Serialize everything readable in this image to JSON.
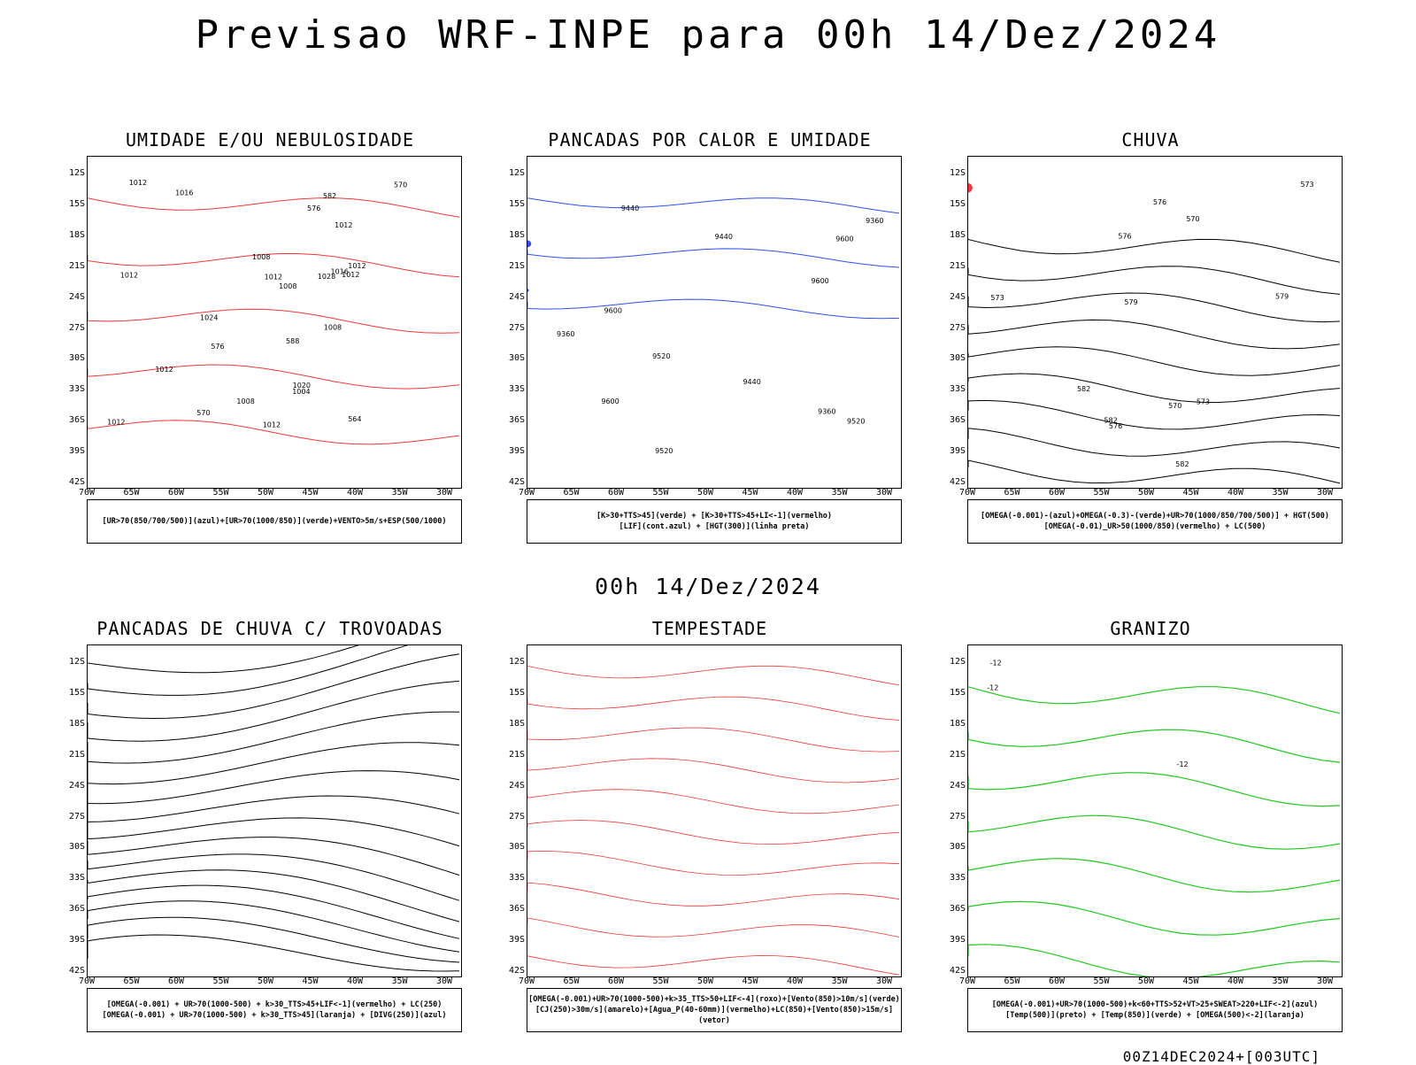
{
  "title": "Previsao WRF-INPE  para 00h 14/Dez/2024",
  "mid_title": "00h 14/Dez/2024",
  "footer": "00Z14DEC2024+[003UTC]",
  "lat_labels": [
    "12S",
    "15S",
    "18S",
    "21S",
    "24S",
    "27S",
    "30S",
    "33S",
    "36S",
    "39S",
    "42S"
  ],
  "lon_labels": [
    "70W",
    "65W",
    "60W",
    "55W",
    "50W",
    "45W",
    "40W",
    "35W",
    "30W"
  ],
  "colors": {
    "blue": "#3050f0",
    "lightblue": "#a0a8f0",
    "green": "#20c820",
    "red": "#f03838",
    "darkteal": "#1e4e4a",
    "orange": "#f07a20",
    "yellow": "#e0d020",
    "black": "#000000"
  },
  "panels": [
    {
      "title": "UMIDADE E/OU NEBULOSIDADE",
      "legend1": "[UR>70(850/700/500)](azul)+[UR>70(1000/850)](verde)+VENTO>5m/s+ESP(500/1000)",
      "legend2": "",
      "labels": [
        "1008",
        "1012",
        "1012",
        "1016",
        "1012",
        "1012",
        "1008",
        "1012",
        "1008",
        "1012",
        "1004",
        "1008",
        "1012",
        "1016",
        "1020",
        "1024",
        "1028",
        "1012",
        "1012",
        "570",
        "570",
        "582",
        "564",
        "576",
        "588",
        "576"
      ]
    },
    {
      "title": "PANCADAS POR CALOR E UMIDADE",
      "legend1": "[K>30+TTS>45](verde) + [K>30+TTS>45+LI<-1](vermelho)",
      "legend2": "[LIF](cont.azul) + [HGT(300)](linha preta)",
      "labels": [
        "9600",
        "9600",
        "9600",
        "9600",
        "9520",
        "9440",
        "9520",
        "9520",
        "9440",
        "9360",
        "9440",
        "9360",
        "9360"
      ]
    },
    {
      "title": "CHUVA",
      "legend1": "[OMEGA(-0.001)-(azul)+OMEGA(-0.3)-(verde)+UR>70(1000/850/700/500)] + HGT(500)",
      "legend2": "[OMEGA(-0.01)_UR>50(1000/850)(vermelho) + LC(500)",
      "labels": [
        "582",
        "582",
        "576",
        "582",
        "579",
        "576",
        "573",
        "570",
        "573",
        "573",
        "576",
        "579",
        "570"
      ]
    },
    {
      "title": "PANCADAS DE CHUVA C/ TROVOADAS",
      "legend1": "[OMEGA(-0.001) + UR>70(1000-500) + k>30_TTS>45+LIF<-1](vermelho) + LC(250)",
      "legend2": "[OMEGA(-0.001) + UR>70(1000-500) + k>30_TTS>45](laranja) + [DIVG(250)](azul)",
      "labels": []
    },
    {
      "title": "TEMPESTADE",
      "legend1": "[OMEGA(-0.001)+UR>70(1000-500)+k>35_TTS>50+LIF<-4](roxo)+[Vento(850)>10m/s](verde)",
      "legend2": "[CJ(250)>30m/s](amarelo)+[Agua_P(40-60mm)](vermelho)+LC(850)+[Vento(850)>15m/s](vetor)",
      "labels": []
    },
    {
      "title": "GRANIZO",
      "legend1": "[OMEGA(-0.001)+UR>70(1000-500)+k<60+TTS>52+VT>25+SWEAT>220+LIF<-2](azul)",
      "legend2": "[Temp(500)](preto) + [Temp(850)](verde) + [OMEGA(500)<-2](laranja)",
      "labels": [
        "-12",
        "-12",
        "-12"
      ]
    }
  ]
}
